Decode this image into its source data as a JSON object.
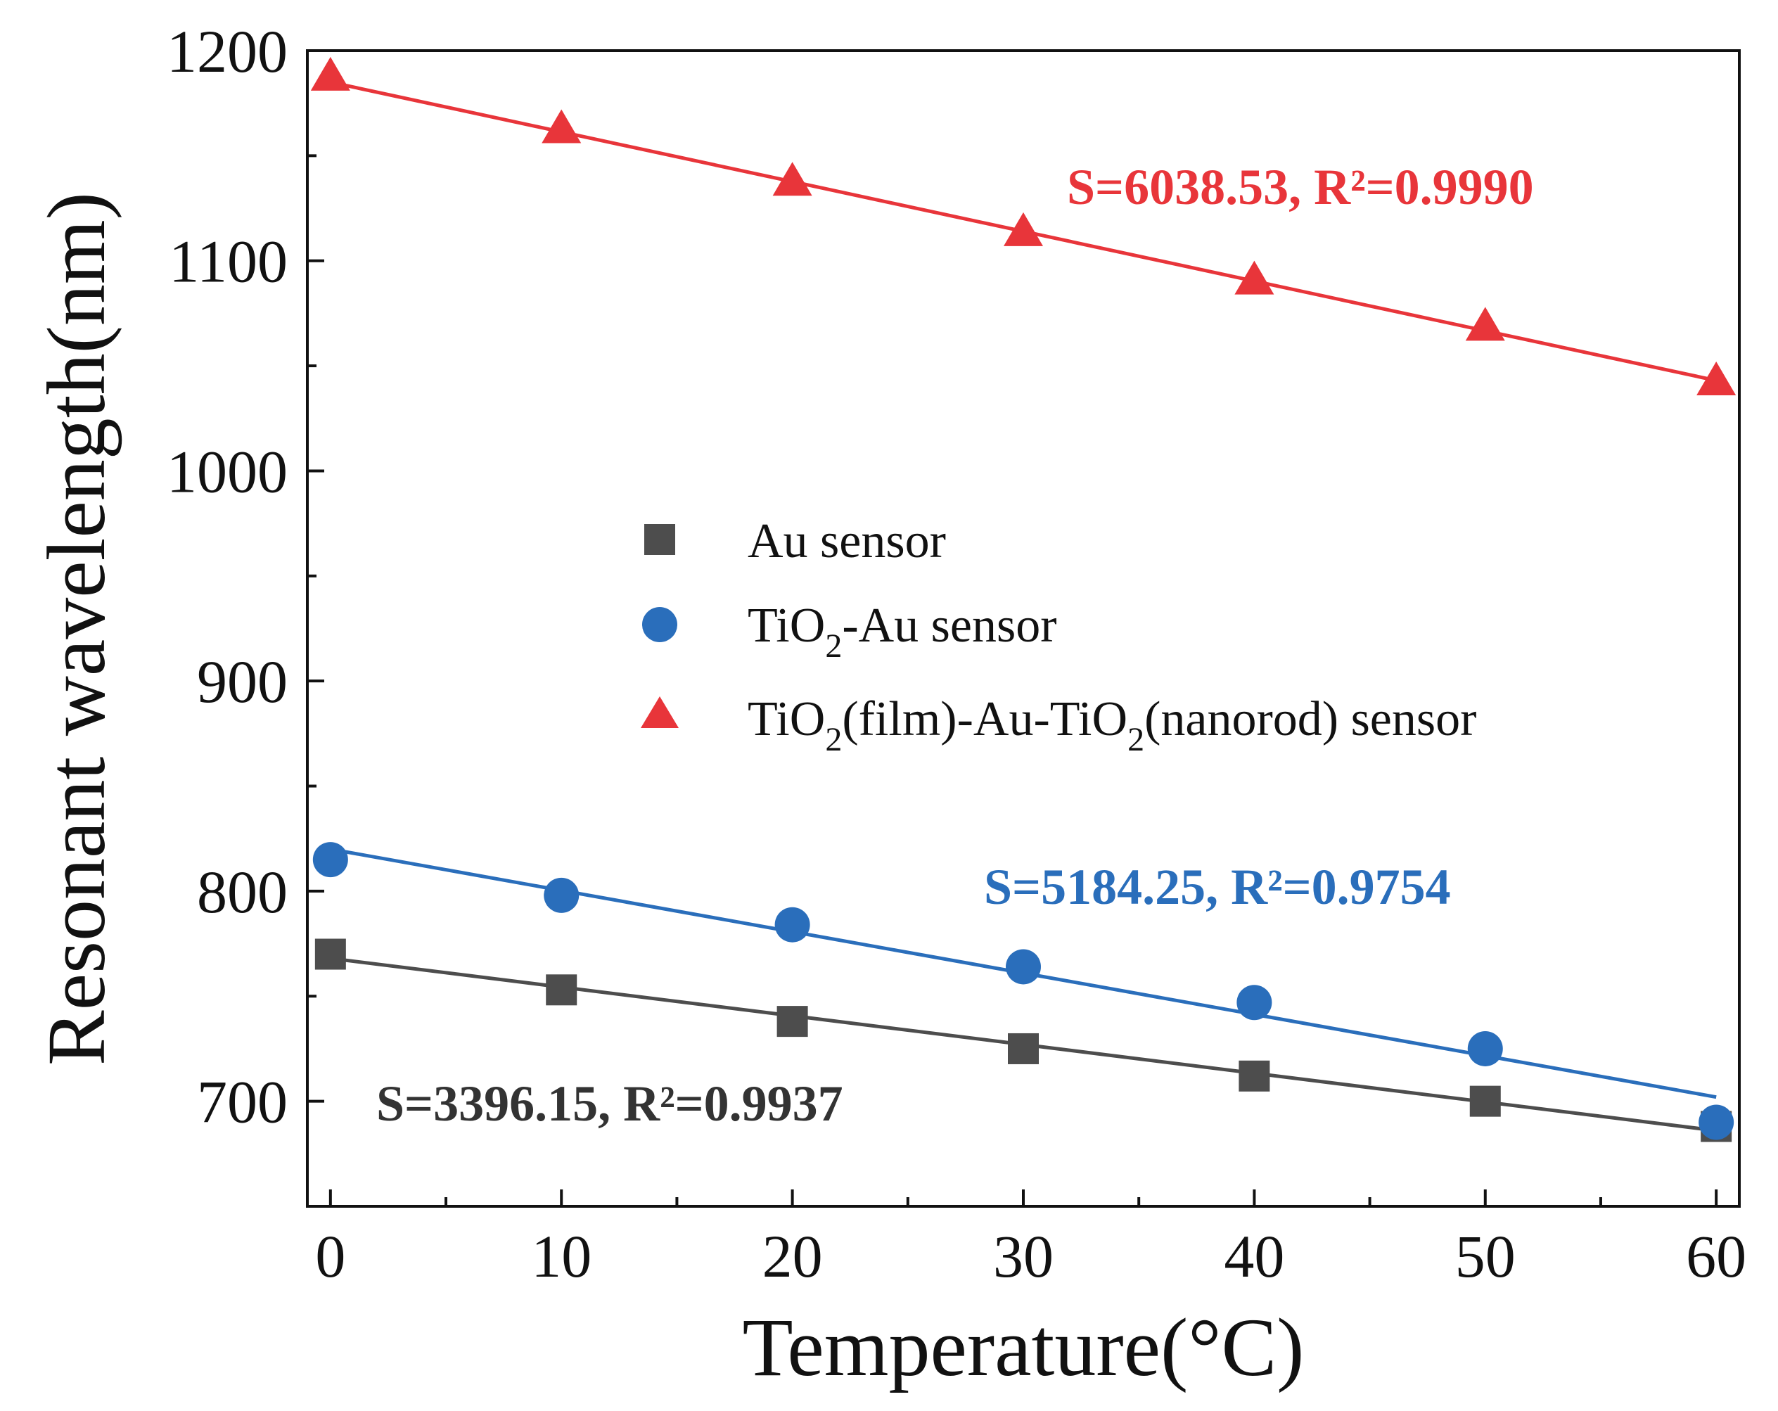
{
  "chart_data": {
    "type": "scatter",
    "title": "",
    "xlabel": "Temperature(°C)",
    "ylabel": "Resonant wavelength(nm)",
    "xlim": [
      -1,
      61
    ],
    "ylim": [
      650,
      1200
    ],
    "xticks": [
      0,
      10,
      20,
      30,
      40,
      50,
      60
    ],
    "yticks": [
      700,
      800,
      900,
      1000,
      1100,
      1200
    ],
    "grid": false,
    "legend_position": "center",
    "series": [
      {
        "id": "au",
        "name": "Au sensor",
        "legend_main": "Au sensor",
        "marker": "square",
        "color": "#4d4d4d",
        "x": [
          0,
          10,
          20,
          30,
          40,
          50,
          60
        ],
        "y": [
          770,
          753,
          738,
          725,
          712,
          700,
          688
        ],
        "fit": [
          768,
          686
        ],
        "annotation": "S=3396.15, R²=0.9937"
      },
      {
        "id": "tio2au",
        "name": "TiO2-Au sensor",
        "legend_parts": [
          "TiO",
          "2",
          "-Au sensor"
        ],
        "marker": "circle",
        "color": "#2a6ebb",
        "x": [
          0,
          10,
          20,
          30,
          40,
          50,
          60
        ],
        "y": [
          815,
          798,
          784,
          764,
          747,
          725,
          690
        ],
        "fit": [
          820,
          702
        ],
        "annotation": "S=5184.25, R²=0.9754"
      },
      {
        "id": "tio2film",
        "name": "TiO2(film)-Au-TiO2(nanorod) sensor",
        "legend_parts": [
          "TiO",
          "2",
          "(film)-Au-TiO",
          "2",
          "(nanorod) sensor"
        ],
        "marker": "triangle",
        "color": "#e8353a",
        "x": [
          0,
          10,
          20,
          30,
          40,
          50,
          60
        ],
        "y": [
          1187,
          1162,
          1137,
          1113,
          1090,
          1068,
          1042
        ],
        "fit": [
          1185,
          1043
        ],
        "annotation": "S=6038.53, R²=0.9990"
      }
    ]
  }
}
